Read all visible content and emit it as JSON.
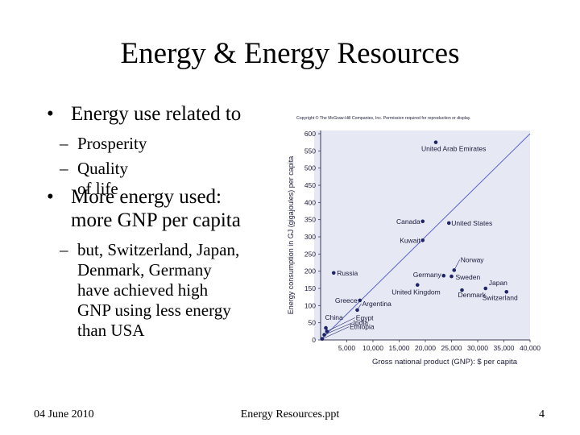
{
  "slide": {
    "title": "Energy & Energy Resources",
    "bullets": [
      {
        "text": "Energy use related to",
        "subs": [
          "Prosperity",
          "Quality of life"
        ]
      },
      {
        "lines": [
          "More energy used:",
          "more GNP per capita"
        ],
        "sub_lines": [
          "but, Switzerland, Japan,",
          "Denmark, Germany",
          "have achieved high",
          "GNP using less energy",
          "than USA"
        ]
      }
    ],
    "bullet_symbol": "•",
    "dash_symbol": "–",
    "footer": {
      "date": "04 June 2010",
      "file": "Energy Resources.ppt",
      "page": "4"
    }
  },
  "chart_data": {
    "type": "scatter",
    "copyright": "Copyright © The McGraw-Hill Companies, Inc. Permission required for reproduction or display.",
    "xlabel": "Gross national product (GNP): $ per capita",
    "ylabel": "Energy consumption in GJ (gigajoules) per capita",
    "xlim": [
      0,
      40000
    ],
    "ylim": [
      0,
      600
    ],
    "x_ticks": [
      "5,000",
      "10,000",
      "15,000",
      "20,000",
      "25,000",
      "30,000",
      "35,000",
      "40,000"
    ],
    "x_tick_values": [
      5000,
      10000,
      15000,
      20000,
      25000,
      30000,
      35000,
      40000
    ],
    "y_ticks": [
      "0",
      "50",
      "100",
      "150",
      "200",
      "250",
      "300",
      "350",
      "400",
      "450",
      "500",
      "550",
      "600"
    ],
    "y_tick_values": [
      0,
      50,
      100,
      150,
      200,
      250,
      300,
      350,
      400,
      450,
      500,
      550,
      600
    ],
    "trend_line": [
      [
        0,
        0
      ],
      [
        40000,
        600
      ]
    ],
    "points": [
      {
        "label": "United Arab Emirates",
        "x": 22000,
        "y": 575
      },
      {
        "label": "Canada",
        "x": 19500,
        "y": 345
      },
      {
        "label": "United States",
        "x": 24500,
        "y": 340
      },
      {
        "label": "Kuwait",
        "x": 19500,
        "y": 290
      },
      {
        "label": "Russia",
        "x": 2500,
        "y": 195
      },
      {
        "label": "Norway",
        "x": 25500,
        "y": 203
      },
      {
        "label": "Germany",
        "x": 23500,
        "y": 187
      },
      {
        "label": "Sweden",
        "x": 25000,
        "y": 185
      },
      {
        "label": "United Kingdom",
        "x": 18500,
        "y": 160
      },
      {
        "label": "Japan",
        "x": 31500,
        "y": 150
      },
      {
        "label": "Denmark",
        "x": 27000,
        "y": 145
      },
      {
        "label": "Switzerland",
        "x": 35500,
        "y": 140
      },
      {
        "label": "Greece",
        "x": 7500,
        "y": 115
      },
      {
        "label": "Argentina",
        "x": 7000,
        "y": 87
      },
      {
        "label": "China",
        "x": 1000,
        "y": 35
      },
      {
        "label": "Egypt",
        "x": 1200,
        "y": 25
      },
      {
        "label": "India",
        "x": 700,
        "y": 15
      },
      {
        "label": "Ethiopia",
        "x": 300,
        "y": 3
      }
    ]
  },
  "colors": {
    "plot_bg": "#e6e8f4",
    "axis": "#3a3a5a",
    "point": "#1e2466",
    "trend": "#5a63c8",
    "text": "#1b1b3a"
  }
}
